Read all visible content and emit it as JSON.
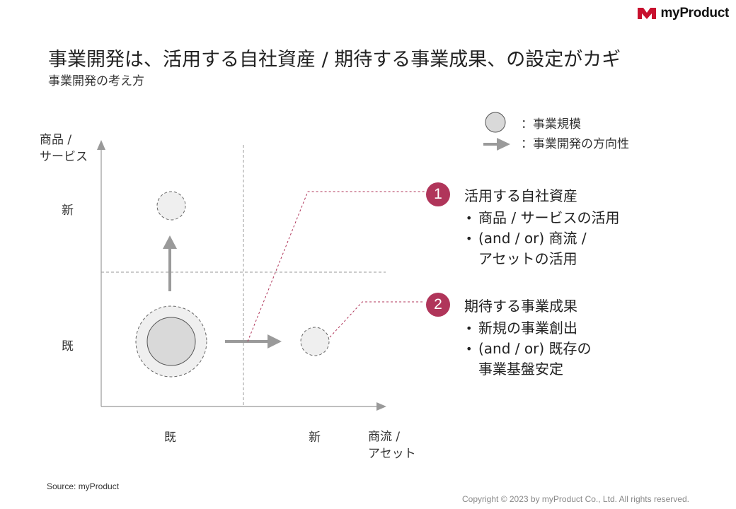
{
  "brand": {
    "name": "myProduct"
  },
  "header": {
    "title": "事業開発は、活用する自社資産 / 期待する事業成果、の設定がカギ",
    "subtitle": "事業開発の考え方"
  },
  "legend": {
    "circle_label": "：事業規模",
    "arrow_label": "：事業開発の方向性"
  },
  "axes": {
    "y_title_line1": "商品 /",
    "y_title_line2": "サービス",
    "y_new": "新",
    "y_existing": "既",
    "x_existing": "既",
    "x_new": "新",
    "x_title_line1": "商流 /",
    "x_title_line2": "アセット"
  },
  "points": [
    {
      "number": "1",
      "title": "活用する自社資産",
      "bullets": [
        "商品 / サービスの活用",
        "(and / or) 商流 /\nアセットの活用"
      ]
    },
    {
      "number": "2",
      "title": "期待する事業成果",
      "bullets": [
        "新規の事業創出",
        "(and / or) 既存の\n事業基盤安定"
      ]
    }
  ],
  "colors": {
    "accent": "#b0355a",
    "brand_red": "#c8102e",
    "circle_fill": "#d9d9d9",
    "light_fill": "#efefef",
    "arrow": "#9a9a9a"
  },
  "footer": {
    "source": "Source: myProduct",
    "copyright": "Copyright © 2023 by myProduct Co., Ltd.  All rights reserved."
  }
}
